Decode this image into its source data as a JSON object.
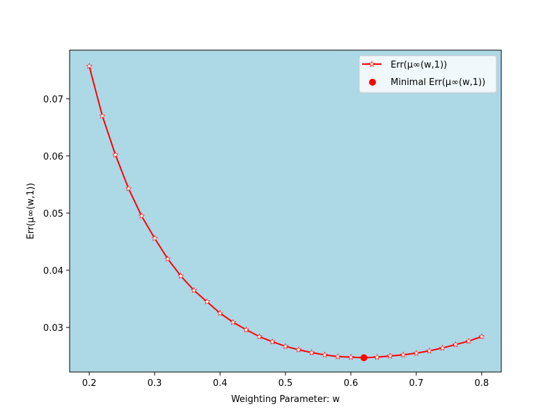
{
  "chart_data": {
    "type": "line",
    "xlabel": "Weighting Parameter: w",
    "ylabel": "Err(μ∞(w,1))",
    "xlim": [
      0.17,
      0.83
    ],
    "ylim": [
      0.0222,
      0.0785
    ],
    "x_ticks": [
      0.2,
      0.3,
      0.4,
      0.5,
      0.6,
      0.7,
      0.8
    ],
    "x_tick_labels": [
      "0.2",
      "0.3",
      "0.4",
      "0.5",
      "0.6",
      "0.7",
      "0.8"
    ],
    "y_ticks": [
      0.03,
      0.04,
      0.05,
      0.06,
      0.07
    ],
    "y_tick_labels": [
      "0.03",
      "0.04",
      "0.05",
      "0.06",
      "0.07"
    ],
    "grid": false,
    "legend_position": "top-right",
    "colors": {
      "background": "#add8e6",
      "line": "#ff0000",
      "marker_fill": "#ffffff",
      "minimum_point": "#ff0000"
    },
    "series": [
      {
        "name": "Err(μ∞(w,1))",
        "x": [
          0.2,
          0.22,
          0.24,
          0.26,
          0.28,
          0.3,
          0.32,
          0.34,
          0.36,
          0.38,
          0.4,
          0.42,
          0.44,
          0.46,
          0.48,
          0.5,
          0.52,
          0.54,
          0.56,
          0.58,
          0.6,
          0.62,
          0.64,
          0.66,
          0.68,
          0.7,
          0.72,
          0.74,
          0.76,
          0.78,
          0.8
        ],
        "y": [
          0.0757,
          0.067,
          0.0602,
          0.0543,
          0.0495,
          0.0456,
          0.042,
          0.039,
          0.0365,
          0.0345,
          0.0325,
          0.0309,
          0.0296,
          0.0284,
          0.0275,
          0.0267,
          0.0261,
          0.0256,
          0.0252,
          0.0249,
          0.0248,
          0.0247,
          0.0248,
          0.025,
          0.0252,
          0.0255,
          0.0259,
          0.0264,
          0.027,
          0.0276,
          0.0284
        ]
      }
    ],
    "minimum": {
      "name": "Minimal Err(μ∞(w,1))",
      "x": 0.62,
      "y": 0.0247
    }
  }
}
